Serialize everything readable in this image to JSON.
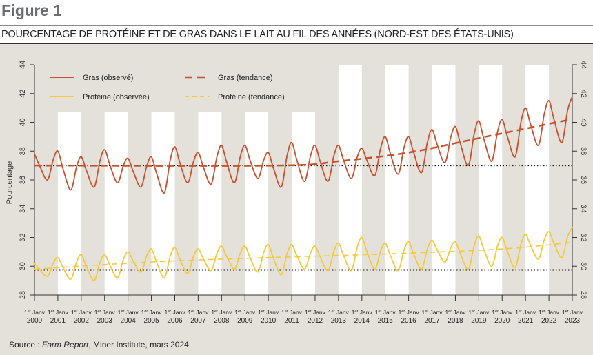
{
  "figure_label": "Figure 1",
  "chart_data": {
    "type": "line",
    "title": "POURCENTAGE DE PROTÉINE ET DE GRAS DANS LE LAIT AU FIL DES ANNÉES (NORD-EST DES ÉTATS-UNIS)",
    "ylabel": "Pourcentage",
    "ylim": [
      28,
      44
    ],
    "yticks": [
      28,
      30,
      32,
      34,
      36,
      38,
      40,
      42,
      44
    ],
    "xlim": [
      "2000-01",
      "2023-01"
    ],
    "xtick_prefix": "1er Janv",
    "xticks": [
      "2000",
      "2001",
      "2002",
      "2003",
      "2004",
      "2005",
      "2006",
      "2007",
      "2008",
      "2009",
      "2010",
      "2011",
      "2012",
      "2013",
      "2014",
      "2015",
      "2016",
      "2017",
      "2018",
      "2019",
      "2020",
      "2021",
      "2022",
      "2023"
    ],
    "grid": false,
    "legend_placement": "top-left",
    "background_bands": [
      {
        "from": "2001",
        "to": "2002",
        "top": 40.7
      },
      {
        "from": "2003",
        "to": "2004",
        "top": 40.7
      },
      {
        "from": "2005",
        "to": "2006",
        "top": 40.7
      },
      {
        "from": "2007",
        "to": "2008",
        "top": 40.7
      },
      {
        "from": "2009",
        "to": "2010",
        "top": 40.7
      },
      {
        "from": "2011",
        "to": "2012",
        "top": 40.7
      },
      {
        "from": "2013",
        "to": "2014",
        "top": 44
      },
      {
        "from": "2015",
        "to": "2016",
        "top": 44
      },
      {
        "from": "2017",
        "to": "2018",
        "top": 44
      },
      {
        "from": "2019",
        "to": "2020",
        "top": 44
      },
      {
        "from": "2021",
        "to": "2022",
        "top": 44
      }
    ],
    "reference_lines": [
      37.0,
      29.75
    ],
    "series": [
      {
        "name": "Gras (observé)",
        "color": "#c9502c",
        "style": "solid",
        "jan_peaks": [
          37.8,
          38.0,
          37.6,
          38.1,
          37.5,
          37.6,
          38.3,
          37.9,
          38.4,
          38.4,
          37.9,
          38.6,
          38.4,
          38.4,
          38.2,
          39.0,
          39.0,
          39.5,
          39.7,
          40.1,
          40.2,
          41.0,
          41.5,
          41.8
        ],
        "jul_troughs": [
          36.0,
          35.3,
          35.5,
          35.8,
          35.5,
          35.1,
          35.8,
          35.7,
          35.8,
          36.1,
          35.5,
          35.9,
          35.9,
          36.1,
          36.3,
          36.4,
          36.5,
          37.2,
          37.0,
          37.3,
          37.6,
          38.4,
          38.6
        ]
      },
      {
        "name": "Protéine (observée)",
        "color": "#f5c93a",
        "style": "solid",
        "jan_peaks": [
          30.2,
          30.6,
          30.8,
          30.8,
          31.0,
          31.2,
          31.3,
          31.2,
          31.4,
          31.4,
          31.5,
          31.5,
          31.4,
          31.6,
          32.0,
          31.6,
          31.7,
          31.8,
          31.7,
          32.1,
          32.0,
          32.2,
          32.4,
          32.7
        ],
        "jul_troughs": [
          29.3,
          29.1,
          29.0,
          29.2,
          29.6,
          29.2,
          29.5,
          29.7,
          29.8,
          29.6,
          29.4,
          29.8,
          29.7,
          29.7,
          29.8,
          29.7,
          29.8,
          30.3,
          29.8,
          30.0,
          29.9,
          30.5,
          30.6
        ]
      },
      {
        "name": "Gras (tendance)",
        "color": "#c9502c",
        "style": "dashed",
        "points": [
          [
            "2000-01",
            37.0
          ],
          [
            "2010-06",
            37.0
          ],
          [
            "2013-01",
            37.3
          ],
          [
            "2016-01",
            37.9
          ],
          [
            "2019-01",
            38.9
          ],
          [
            "2022-12",
            40.2
          ]
        ]
      },
      {
        "name": "Protéine (tendance)",
        "color": "#f5c93a",
        "style": "dashed",
        "points": [
          [
            "2000-01",
            29.8
          ],
          [
            "2005-01",
            30.3
          ],
          [
            "2010-01",
            30.6
          ],
          [
            "2015-01",
            30.85
          ],
          [
            "2020-01",
            31.2
          ],
          [
            "2022-12",
            31.65
          ]
        ]
      }
    ]
  },
  "source": {
    "prefix": "Source : ",
    "italic": "Farm Report",
    "rest": ", Miner Institute, mars 2024."
  }
}
